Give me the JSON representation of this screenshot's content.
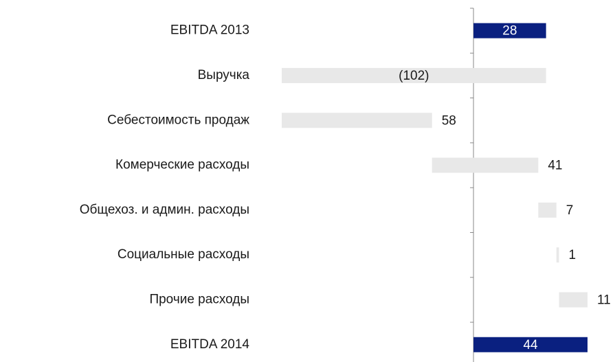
{
  "chart_data": {
    "type": "waterfall",
    "categories": [
      "EBITDA 2013",
      "Выручка",
      "Себестоимость продаж",
      "Комерческие расходы",
      "Общехоз. и админ. расходы",
      "Социальные расходы",
      "Прочие расходы",
      "EBITDA 2014"
    ],
    "values": [
      28,
      -102,
      58,
      41,
      7,
      1,
      11,
      44
    ],
    "value_labels": [
      "28",
      "(102)",
      "58",
      "41",
      "7",
      "1",
      "11",
      "44"
    ],
    "colors": [
      "#0a2080",
      "#e8e8e8",
      "#e8e8e8",
      "#e8e8e8",
      "#e8e8e8",
      "#e8e8e8",
      "#e8e8e8",
      "#0a2080"
    ]
  }
}
